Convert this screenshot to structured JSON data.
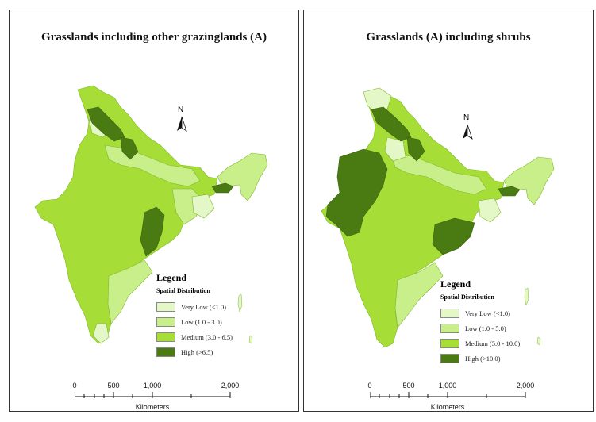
{
  "maps": [
    {
      "title": "Grasslands including other grazinglands (A)",
      "legend": {
        "title": "Legend",
        "subtitle": "Spatial Distribution",
        "items": [
          {
            "label": "Very Low (<1.0)",
            "color": "#e4f7c6"
          },
          {
            "label": "Low (1.0 - 3.0)",
            "color": "#c9ef8a"
          },
          {
            "label": "Medium (3.0 - 6.5)",
            "color": "#a6dd36"
          },
          {
            "label": "High (>6.5)",
            "color": "#4a7a12"
          }
        ]
      },
      "scalebar": {
        "ticks": [
          "0",
          "500",
          "1,000",
          "2,000"
        ],
        "unit": "Kilometers"
      },
      "north": "N"
    },
    {
      "title": "Grasslands (A) including shrubs",
      "legend": {
        "title": "Legend",
        "subtitle": "Spatial Distribution",
        "items": [
          {
            "label": "Very Low (<1.0)",
            "color": "#e4f7c6"
          },
          {
            "label": "Low (1.0 - 5.0)",
            "color": "#c9ef8a"
          },
          {
            "label": "Medium (5.0 - 10.0)",
            "color": "#a6dd36"
          },
          {
            "label": "High (>10.0)",
            "color": "#4a7a12"
          }
        ]
      },
      "scalebar": {
        "ticks": [
          "0",
          "500",
          "1,000",
          "2,000"
        ],
        "unit": "Kilometers"
      },
      "north": "N"
    }
  ]
}
